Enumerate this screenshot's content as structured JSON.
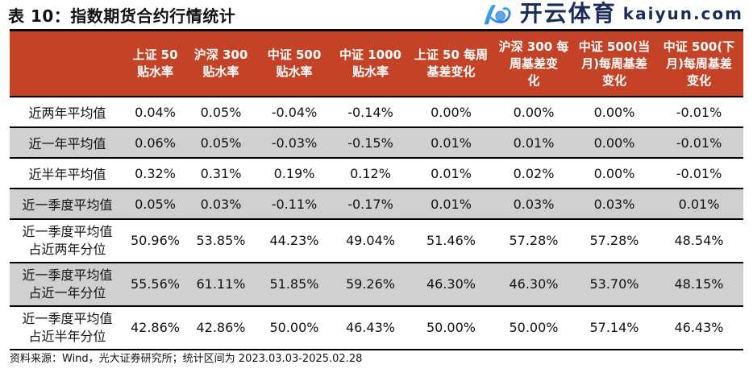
{
  "title": "表 10：指数期货合约行情统计",
  "headers": [
    "",
    "上证 50\n贴水率",
    "沪深 300\n贴水率",
    "中证 500\n贴水率",
    "中证 1000\n贴水率",
    "上证 50 每周\n基差变化",
    "沪深 300 每\n周基差变\n化",
    "中证 500(当\n月)每周基差\n变化",
    "中证 500(下\n月)每周基差\n变化"
  ],
  "rows": [
    {
      "label": "近两年平均值",
      "values": [
        "0.04%",
        "0.05%",
        "-0.04%",
        "-0.14%",
        "0.00%",
        "0.00%",
        "0.00%",
        "-0.01%"
      ]
    },
    {
      "label": "近一年平均值",
      "values": [
        "0.06%",
        "0.05%",
        "-0.03%",
        "-0.15%",
        "0.01%",
        "0.01%",
        "0.00%",
        "-0.01%"
      ]
    },
    {
      "label": "近半年平均值",
      "values": [
        "0.32%",
        "0.31%",
        "0.19%",
        "0.12%",
        "0.01%",
        "0.02%",
        "0.00%",
        "-0.01%"
      ]
    },
    {
      "label": "近一季度平均值",
      "values": [
        "0.05%",
        "0.03%",
        "-0.11%",
        "-0.17%",
        "0.01%",
        "0.03%",
        "0.03%",
        "0.01%"
      ]
    },
    {
      "label": "近一季度平均值\n占近两年分位",
      "values": [
        "50.96%",
        "53.85%",
        "44.23%",
        "49.04%",
        "51.46%",
        "57.28%",
        "57.28%",
        "48.54%"
      ]
    },
    {
      "label": "近一季度平均值\n占近一年分位",
      "values": [
        "55.56%",
        "61.11%",
        "51.85%",
        "59.26%",
        "46.30%",
        "46.30%",
        "53.70%",
        "48.15%"
      ]
    },
    {
      "label": "近一季度平均值\n占近半年分位",
      "values": [
        "42.86%",
        "42.86%",
        "50.00%",
        "46.43%",
        "50.00%",
        "50.00%",
        "57.14%",
        "46.43%"
      ]
    }
  ],
  "source": "资料来源：Wind，光大证券研究所；统计区间为 2023.03.03-2025.02.28",
  "watermark": {
    "zh": "开云体育",
    "en": "kaiyun.com"
  }
}
